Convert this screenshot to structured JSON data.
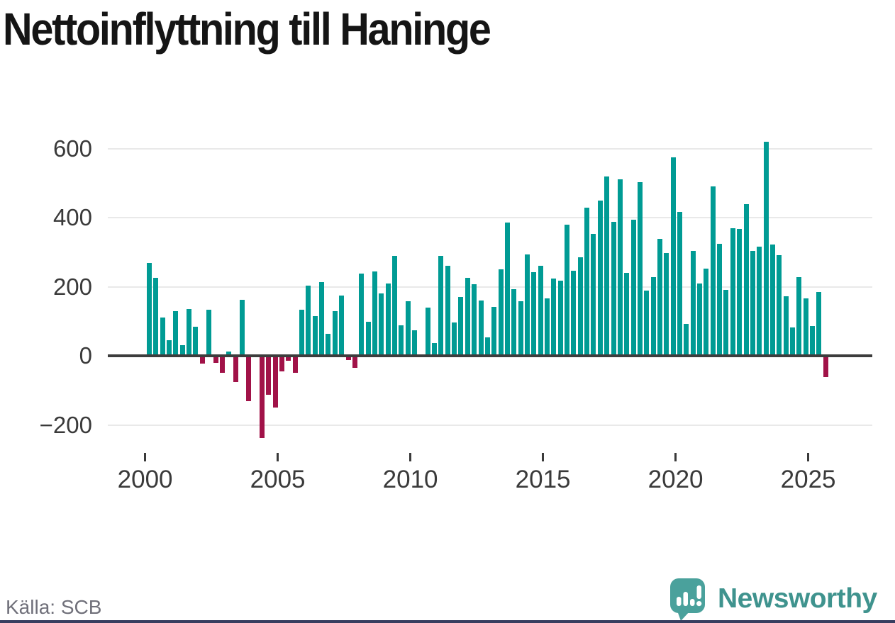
{
  "title": "Nettoinflyttning till Haninge",
  "source": {
    "label": "Källa: SCB"
  },
  "logo": {
    "text": "Newsworthy",
    "icon": "newsworthy-speech-bubble-bar-chart-icon"
  },
  "colors": {
    "positive_bar": "#009B94",
    "negative_bar": "#A11248",
    "gridline": "#E9E9E9",
    "zero_line": "#3D3D3D",
    "axis_text": "#3A3A3A",
    "title_text": "#151515",
    "source_text": "#70707A",
    "logo_teal": "#3F938E",
    "logo_icon_teal": "#4AA19C",
    "bottom_strip": "#373D5F"
  },
  "chart_data": {
    "type": "bar",
    "title": "Nettoinflyttning till Haninge",
    "x_unit": "quarter",
    "grid": "horizontal",
    "legend": "none",
    "ylim": [
      -260,
      660
    ],
    "yticks": [
      -200,
      0,
      200,
      400,
      600
    ],
    "xticks": [
      2000,
      2005,
      2010,
      2015,
      2020,
      2025
    ],
    "categories": [
      "2000Q1",
      "2000Q2",
      "2000Q3",
      "2000Q4",
      "2001Q1",
      "2001Q2",
      "2001Q3",
      "2001Q4",
      "2002Q1",
      "2002Q2",
      "2002Q3",
      "2002Q4",
      "2003Q1",
      "2003Q2",
      "2003Q3",
      "2003Q4",
      "2004Q1",
      "2004Q2",
      "2004Q3",
      "2004Q4",
      "2005Q1",
      "2005Q2",
      "2005Q3",
      "2005Q4",
      "2006Q1",
      "2006Q2",
      "2006Q3",
      "2006Q4",
      "2007Q1",
      "2007Q2",
      "2007Q3",
      "2007Q4",
      "2008Q1",
      "2008Q2",
      "2008Q3",
      "2008Q4",
      "2009Q1",
      "2009Q2",
      "2009Q3",
      "2009Q4",
      "2010Q1",
      "2010Q2",
      "2010Q3",
      "2010Q4",
      "2011Q1",
      "2011Q2",
      "2011Q3",
      "2011Q4",
      "2012Q1",
      "2012Q2",
      "2012Q3",
      "2012Q4",
      "2013Q1",
      "2013Q2",
      "2013Q3",
      "2013Q4",
      "2014Q1",
      "2014Q2",
      "2014Q3",
      "2014Q4",
      "2015Q1",
      "2015Q2",
      "2015Q3",
      "2015Q4",
      "2016Q1",
      "2016Q2",
      "2016Q3",
      "2016Q4",
      "2017Q1",
      "2017Q2",
      "2017Q3",
      "2017Q4",
      "2018Q1",
      "2018Q2",
      "2018Q3",
      "2018Q4",
      "2019Q1",
      "2019Q2",
      "2019Q3",
      "2019Q4",
      "2020Q1",
      "2020Q2",
      "2020Q3",
      "2020Q4",
      "2021Q1",
      "2021Q2",
      "2021Q3",
      "2021Q4",
      "2022Q1",
      "2022Q2",
      "2022Q3",
      "2022Q4",
      "2023Q1",
      "2023Q2",
      "2023Q3",
      "2023Q4",
      "2024Q1",
      "2024Q2",
      "2024Q3",
      "2024Q4",
      "2025Q1",
      "2025Q2",
      "2025Q3"
    ],
    "values": [
      268,
      226,
      110,
      46,
      130,
      30,
      136,
      85,
      -22,
      134,
      -20,
      -49,
      12,
      -75,
      163,
      -131,
      0,
      -237,
      -112,
      -149,
      -45,
      -14,
      -49,
      133,
      203,
      114,
      213,
      63,
      130,
      175,
      -13,
      -34,
      237,
      99,
      245,
      180,
      209,
      289,
      88,
      157,
      73,
      0,
      140,
      37,
      289,
      261,
      96,
      171,
      225,
      208,
      161,
      53,
      142,
      250,
      386,
      193,
      157,
      294,
      243,
      260,
      166,
      223,
      217,
      379,
      246,
      286,
      429,
      353,
      450,
      519,
      388,
      510,
      240,
      394,
      502,
      189,
      227,
      338,
      297,
      575,
      417,
      93,
      304,
      210,
      252,
      490,
      325,
      191,
      369,
      368,
      440,
      304,
      316,
      620,
      323,
      291,
      172,
      82,
      227,
      166,
      86,
      184,
      -62
    ]
  }
}
